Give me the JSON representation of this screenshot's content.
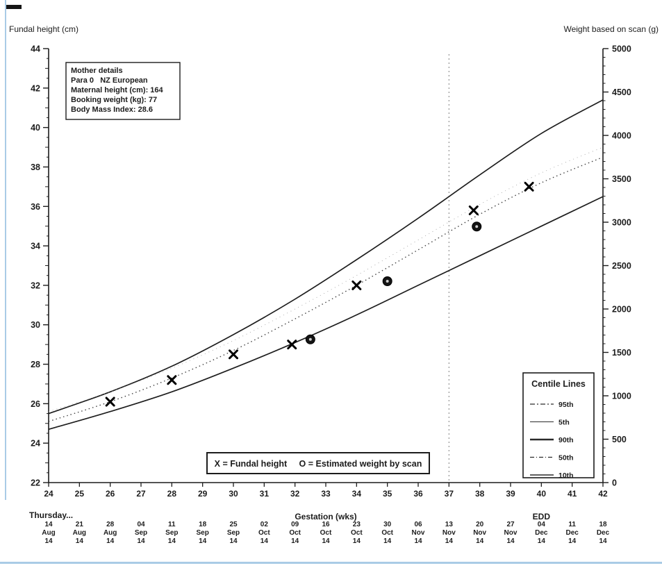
{
  "page": {
    "edge_color": "#a9cbe6",
    "ink_color": "#1c1c1c"
  },
  "mother_details": {
    "line1": "Mother details",
    "line2": "Para 0   NZ European",
    "line3": "Maternal height (cm): 164",
    "line4": "Booking weight (kg): 77",
    "line5": "Body Mass Index: 28.6"
  },
  "centile_legend": {
    "title": "Centile Lines",
    "entries": [
      {
        "label": "95th",
        "style": "dashdot"
      },
      {
        "label": "5th",
        "style": "thin"
      },
      {
        "label": "90th",
        "style": "thick"
      },
      {
        "label": "50th",
        "style": "dashed"
      },
      {
        "label": "10th",
        "style": "solid"
      }
    ]
  },
  "marker_legend": {
    "text": "X = Fundal height     O = Estimated weight by scan"
  },
  "chart_data": {
    "type": "line",
    "left_axis_title": "Fundal height (cm)",
    "right_axis_title": "Weight based on scan (g)",
    "xlabel": "Gestation (wks)",
    "xlim": [
      24,
      42
    ],
    "x_tick_step": 1,
    "left_ylim": [
      22,
      44
    ],
    "left_tick_step": 2,
    "right_ylim": [
      0,
      5000
    ],
    "right_tick_step": 500,
    "grid": false,
    "edd_line_week": 37,
    "edd_label": "EDD",
    "edd_label_week": 40,
    "day_row_label": "Thursday...",
    "dates": [
      [
        "14",
        "Aug",
        "14"
      ],
      [
        "21",
        "Aug",
        "14"
      ],
      [
        "28",
        "Aug",
        "14"
      ],
      [
        "04",
        "Sep",
        "14"
      ],
      [
        "11",
        "Sep",
        "14"
      ],
      [
        "18",
        "Sep",
        "14"
      ],
      [
        "25",
        "Sep",
        "14"
      ],
      [
        "02",
        "Oct",
        "14"
      ],
      [
        "09",
        "Oct",
        "14"
      ],
      [
        "16",
        "Oct",
        "14"
      ],
      [
        "23",
        "Oct",
        "14"
      ],
      [
        "30",
        "Oct",
        "14"
      ],
      [
        "06",
        "Nov",
        "14"
      ],
      [
        "13",
        "Nov",
        "14"
      ],
      [
        "20",
        "Nov",
        "14"
      ],
      [
        "27",
        "Nov",
        "14"
      ],
      [
        "04",
        "Dec",
        "14"
      ],
      [
        "11",
        "Dec",
        "14"
      ],
      [
        "18",
        "Dec",
        "14"
      ]
    ],
    "centile_weeks": [
      24,
      26,
      28,
      30,
      32,
      34,
      36,
      38,
      40,
      42
    ],
    "centile_series": [
      {
        "name": "90th",
        "style": "solid",
        "values_cm": [
          25.5,
          26.6,
          27.9,
          29.5,
          31.3,
          33.3,
          35.4,
          37.6,
          39.7,
          41.4
        ]
      },
      {
        "name": "95th",
        "style": "faint",
        "values_cm": [
          25.6,
          26.6,
          27.8,
          29.2,
          30.8,
          32.5,
          34.3,
          36.1,
          37.7,
          39.0
        ]
      },
      {
        "name": "50th",
        "style": "dotted",
        "values_cm": [
          25.1,
          26.1,
          27.3,
          28.7,
          30.3,
          32.0,
          33.8,
          35.6,
          37.2,
          38.5
        ]
      },
      {
        "name": "10th",
        "style": "solid",
        "values_cm": [
          24.7,
          25.6,
          26.6,
          27.8,
          29.1,
          30.5,
          32.0,
          33.5,
          35.0,
          36.5
        ]
      }
    ],
    "fundal_height_points": [
      {
        "week": 26.0,
        "cm": 26.1
      },
      {
        "week": 28.0,
        "cm": 27.2
      },
      {
        "week": 30.0,
        "cm": 28.5
      },
      {
        "week": 31.9,
        "cm": 29.0
      },
      {
        "week": 34.0,
        "cm": 32.0
      },
      {
        "week": 37.8,
        "cm": 35.8
      },
      {
        "week": 39.6,
        "cm": 37.0
      }
    ],
    "scan_weight_points": [
      {
        "week": 32.5,
        "g": 1650
      },
      {
        "week": 35.0,
        "g": 2320
      },
      {
        "week": 37.9,
        "g": 2950
      }
    ]
  }
}
